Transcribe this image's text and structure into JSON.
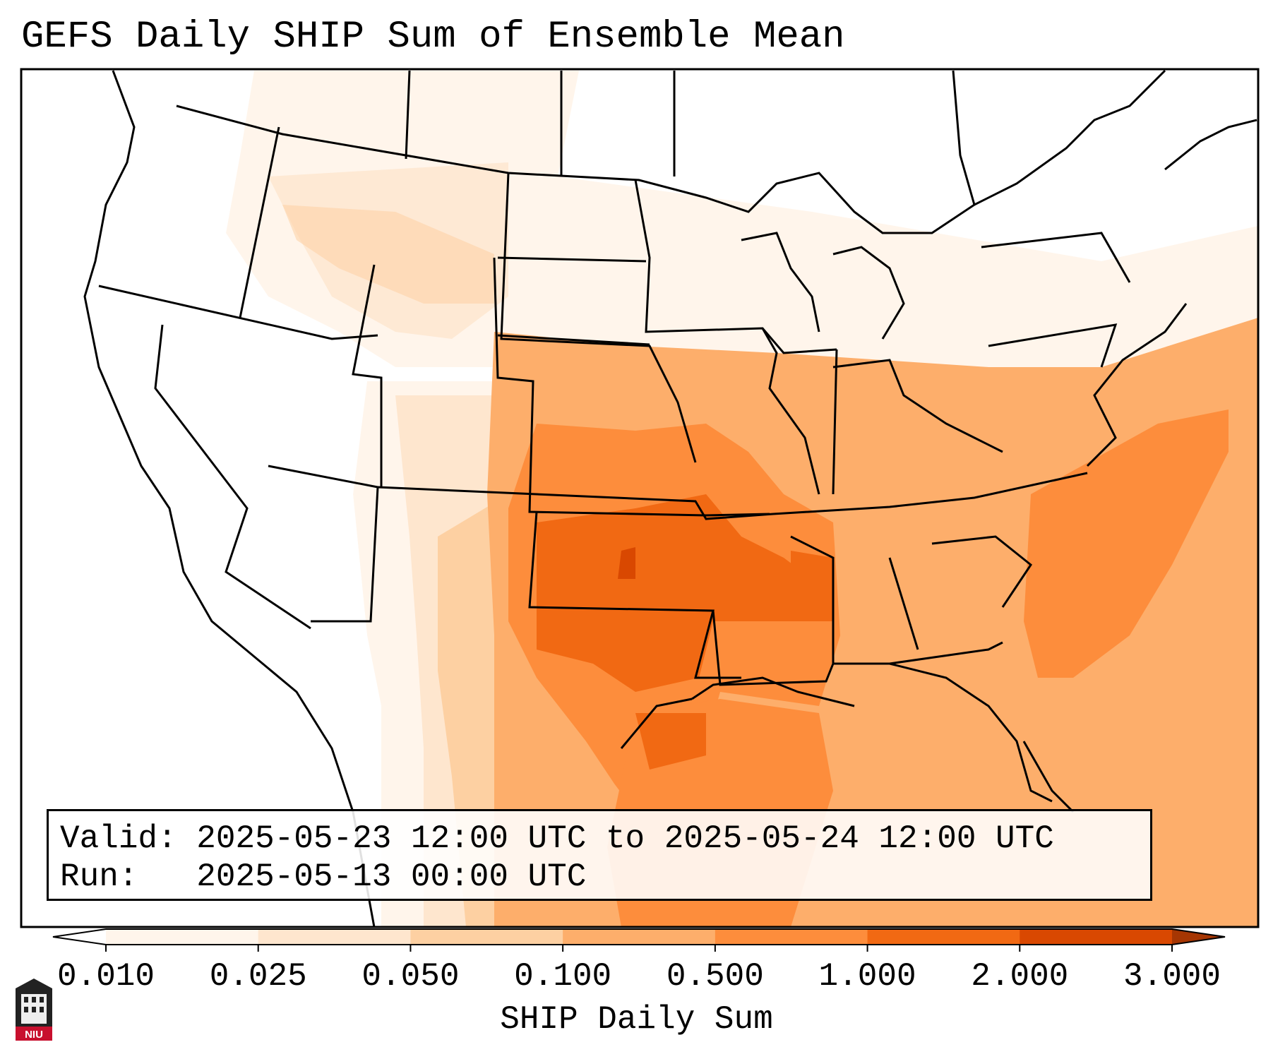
{
  "title": "GEFS Daily SHIP Sum of Ensemble Mean",
  "valid_label": "Valid:",
  "valid_value": "2025-05-23 12:00 UTC to 2025-05-24 12:00 UTC",
  "run_label": "Run:",
  "run_value": "2025-05-13 00:00 UTC",
  "colorbar": {
    "label": "SHIP Daily Sum",
    "ticks": [
      "0.010",
      "0.025",
      "0.050",
      "0.100",
      "0.500",
      "1.000",
      "2.000",
      "3.000"
    ],
    "colors": [
      "#ffffff",
      "#fff5eb",
      "#fee6ce",
      "#fdd0a2",
      "#fdae6b",
      "#fd8d3c",
      "#f16913",
      "#d94801",
      "#a63603"
    ]
  },
  "logo_text": "NIU",
  "colors": {
    "frame": "#000000",
    "background": "#ffffff"
  }
}
